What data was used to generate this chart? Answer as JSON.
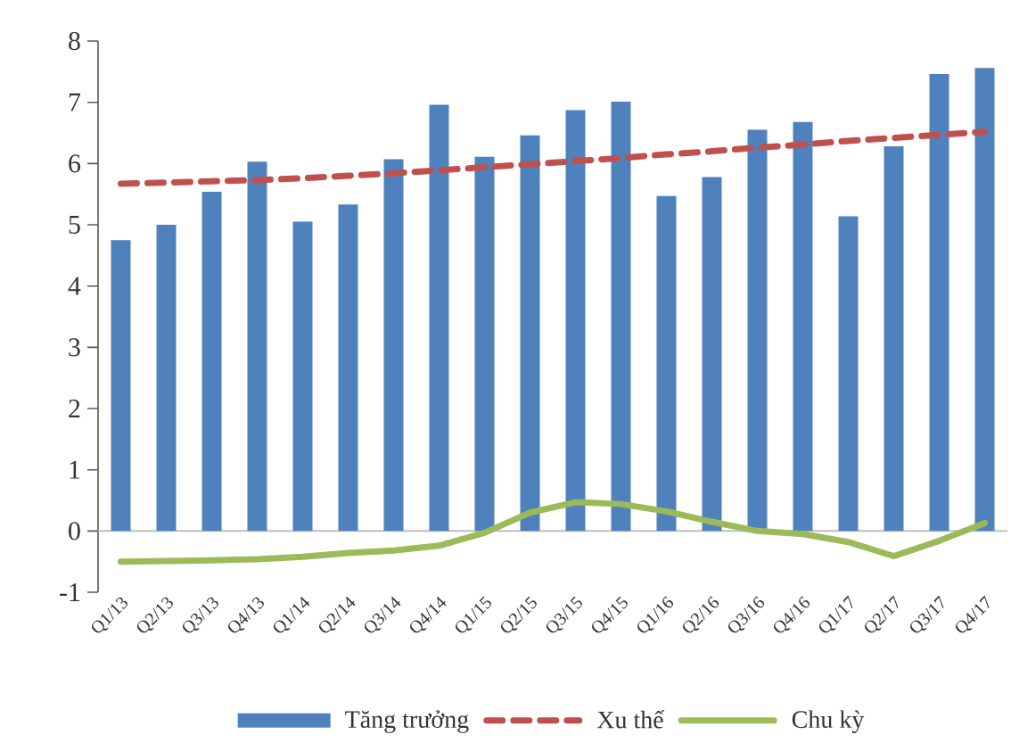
{
  "chart_data": {
    "type": "bar",
    "categories": [
      "Q1/13",
      "Q2/13",
      "Q3/13",
      "Q4/13",
      "Q1/14",
      "Q2/14",
      "Q3/14",
      "Q4/14",
      "Q1/15",
      "Q2/15",
      "Q3/15",
      "Q4/15",
      "Q1/16",
      "Q2/16",
      "Q3/16",
      "Q4/16",
      "Q1/17",
      "Q2/17",
      "Q3/17",
      "Q4/17"
    ],
    "series": [
      {
        "name": "Tăng trưởng",
        "color": "#4f81bd",
        "values": [
          4.75,
          5.0,
          5.54,
          6.03,
          5.05,
          5.33,
          6.07,
          6.96,
          6.11,
          6.46,
          6.87,
          7.01,
          5.47,
          5.78,
          6.55,
          6.68,
          5.14,
          6.28,
          7.46,
          7.56
        ]
      },
      {
        "name": "Xu thế",
        "type": "line",
        "line_style": "dashed",
        "color": "#c0504d",
        "values": [
          5.67,
          5.69,
          5.71,
          5.73,
          5.76,
          5.8,
          5.84,
          5.89,
          5.94,
          5.99,
          6.04,
          6.09,
          6.15,
          6.2,
          6.26,
          6.31,
          6.37,
          6.42,
          6.47,
          6.52
        ]
      },
      {
        "name": "Chu kỳ",
        "type": "line",
        "line_style": "solid",
        "color": "#9bbb59",
        "values": [
          -0.5,
          -0.49,
          -0.48,
          -0.46,
          -0.42,
          -0.36,
          -0.32,
          -0.24,
          -0.03,
          0.3,
          0.47,
          0.44,
          0.32,
          0.15,
          0.0,
          -0.05,
          -0.18,
          -0.41,
          -0.16,
          0.13
        ]
      }
    ],
    "ylim": [
      -1,
      8
    ],
    "yticks": [
      -1,
      0,
      1,
      2,
      3,
      4,
      5,
      6,
      7,
      8
    ],
    "legend": "bottom"
  }
}
